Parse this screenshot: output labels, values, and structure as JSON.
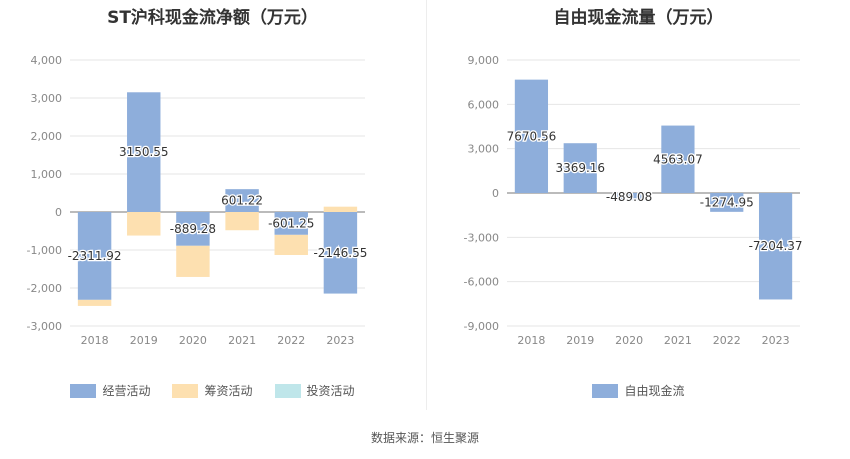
{
  "source_text": "数据来源：恒生聚源",
  "chart_data": [
    {
      "type": "bar",
      "title": "ST沪科现金流净额（万元）",
      "categories": [
        "2018",
        "2019",
        "2020",
        "2021",
        "2022",
        "2023"
      ],
      "ylim": [
        -3000,
        4000
      ],
      "yticks": [
        4000,
        3000,
        2000,
        1000,
        0,
        -1000,
        -2000,
        -3000
      ],
      "ytick_labels": [
        "4,000",
        "3,000",
        "2,000",
        "1,000",
        "0",
        "-1,000",
        "-2,000",
        "-3,000"
      ],
      "stacked": true,
      "grid": true,
      "legend_position": "bottom",
      "series": [
        {
          "name": "经营活动",
          "color": "#8eaedb",
          "values": [
            -2311.92,
            3150.55,
            -889.28,
            601.22,
            -601.25,
            -2146.55
          ],
          "labels": [
            "-2311.92",
            "3150.55",
            "-889.28",
            "601.22",
            "-601.25",
            "-2146.55"
          ]
        },
        {
          "name": "筹资活动",
          "color": "#fde0b0",
          "values": [
            -160,
            -620,
            -820,
            -480,
            -530,
            140
          ]
        },
        {
          "name": "投资活动",
          "color": "#bfe6ea",
          "values": [
            0,
            0,
            0,
            0,
            0,
            0
          ]
        }
      ]
    },
    {
      "type": "bar",
      "title": "自由现金流量（万元）",
      "categories": [
        "2018",
        "2019",
        "2020",
        "2021",
        "2022",
        "2023"
      ],
      "ylim": [
        -9000,
        9000
      ],
      "yticks": [
        9000,
        6000,
        3000,
        0,
        -3000,
        -6000,
        -9000
      ],
      "ytick_labels": [
        "9,000",
        "6,000",
        "3,000",
        "0",
        "-3,000",
        "-6,000",
        "-9,000"
      ],
      "grid": true,
      "legend_position": "bottom",
      "series": [
        {
          "name": "自由现金流",
          "color": "#8eaedb",
          "values": [
            7670.56,
            3369.16,
            -489.08,
            4563.07,
            -1274.95,
            -7204.37
          ],
          "labels": [
            "7670.56",
            "3369.16",
            "-489.08",
            "4563.07",
            "-1274.95",
            "-7204.37"
          ]
        }
      ]
    }
  ]
}
